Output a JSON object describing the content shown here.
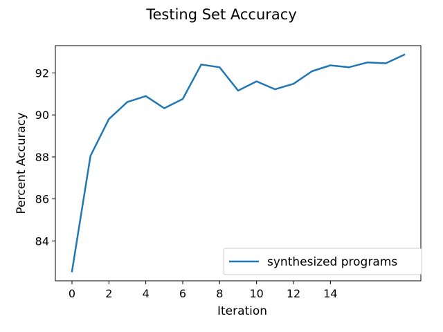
{
  "chart_data": {
    "type": "line",
    "title": "Testing Set Accuracy",
    "xlabel": "Iteration",
    "ylabel": "Percent Accuracy",
    "xlim": [
      -0.9,
      18.9
    ],
    "ylim": [
      82.1,
      93.3
    ],
    "xticks": [
      0,
      2,
      4,
      6,
      8,
      10,
      12,
      14
    ],
    "yticks": [
      84,
      86,
      88,
      90,
      92
    ],
    "grid": false,
    "legend_position": "lower-right",
    "series": [
      {
        "name": "synthesized programs",
        "color": "#1f77b4",
        "x": [
          0,
          1,
          2,
          3,
          4,
          5,
          6,
          7,
          8,
          9,
          10,
          11,
          12,
          13,
          14,
          15,
          16,
          17,
          18
        ],
        "y": [
          82.55,
          88.05,
          89.8,
          90.62,
          90.9,
          90.32,
          90.76,
          92.4,
          92.27,
          91.16,
          91.6,
          91.22,
          91.48,
          92.08,
          92.36,
          92.27,
          92.5,
          92.46,
          92.87
        ]
      }
    ]
  }
}
